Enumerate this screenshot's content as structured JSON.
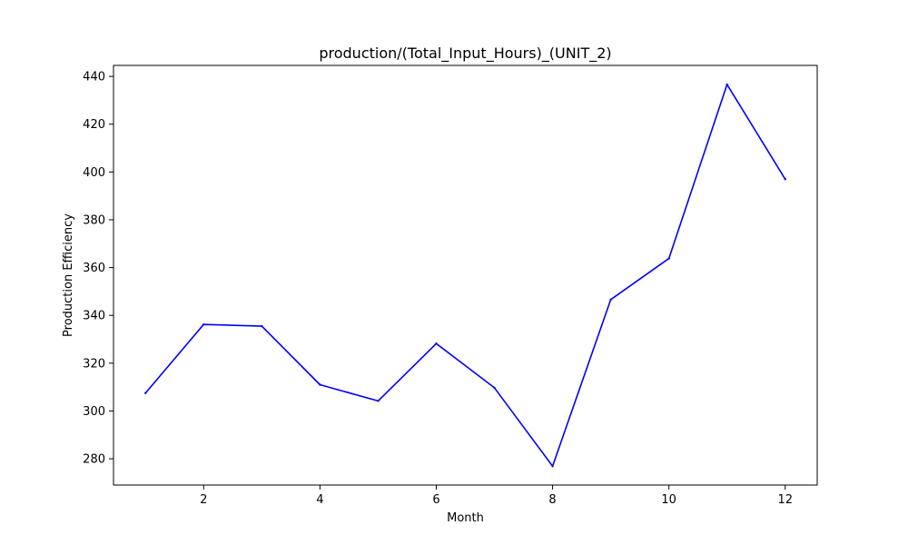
{
  "chart_data": {
    "type": "line",
    "title": "production/(Total_Input_Hours)_(UNIT_2)",
    "xlabel": "Month",
    "ylabel": "Production Efficiency",
    "x": [
      1,
      2,
      3,
      4,
      5,
      6,
      7,
      8,
      9,
      10,
      11,
      12
    ],
    "series": [
      {
        "values": [
          307.5,
          336.2,
          335.5,
          311.0,
          304.2,
          328.2,
          309.7,
          276.9,
          346.6,
          363.8,
          436.6,
          397.0
        ],
        "color": "#0000ff"
      }
    ],
    "xlim": [
      0.45,
      12.55
    ],
    "ylim": [
      269.0,
      444.6
    ],
    "xticks": [
      2,
      4,
      6,
      8,
      10,
      12
    ],
    "yticks": [
      280,
      300,
      320,
      340,
      360,
      380,
      400,
      420,
      440
    ],
    "grid": false,
    "legend": "none"
  }
}
